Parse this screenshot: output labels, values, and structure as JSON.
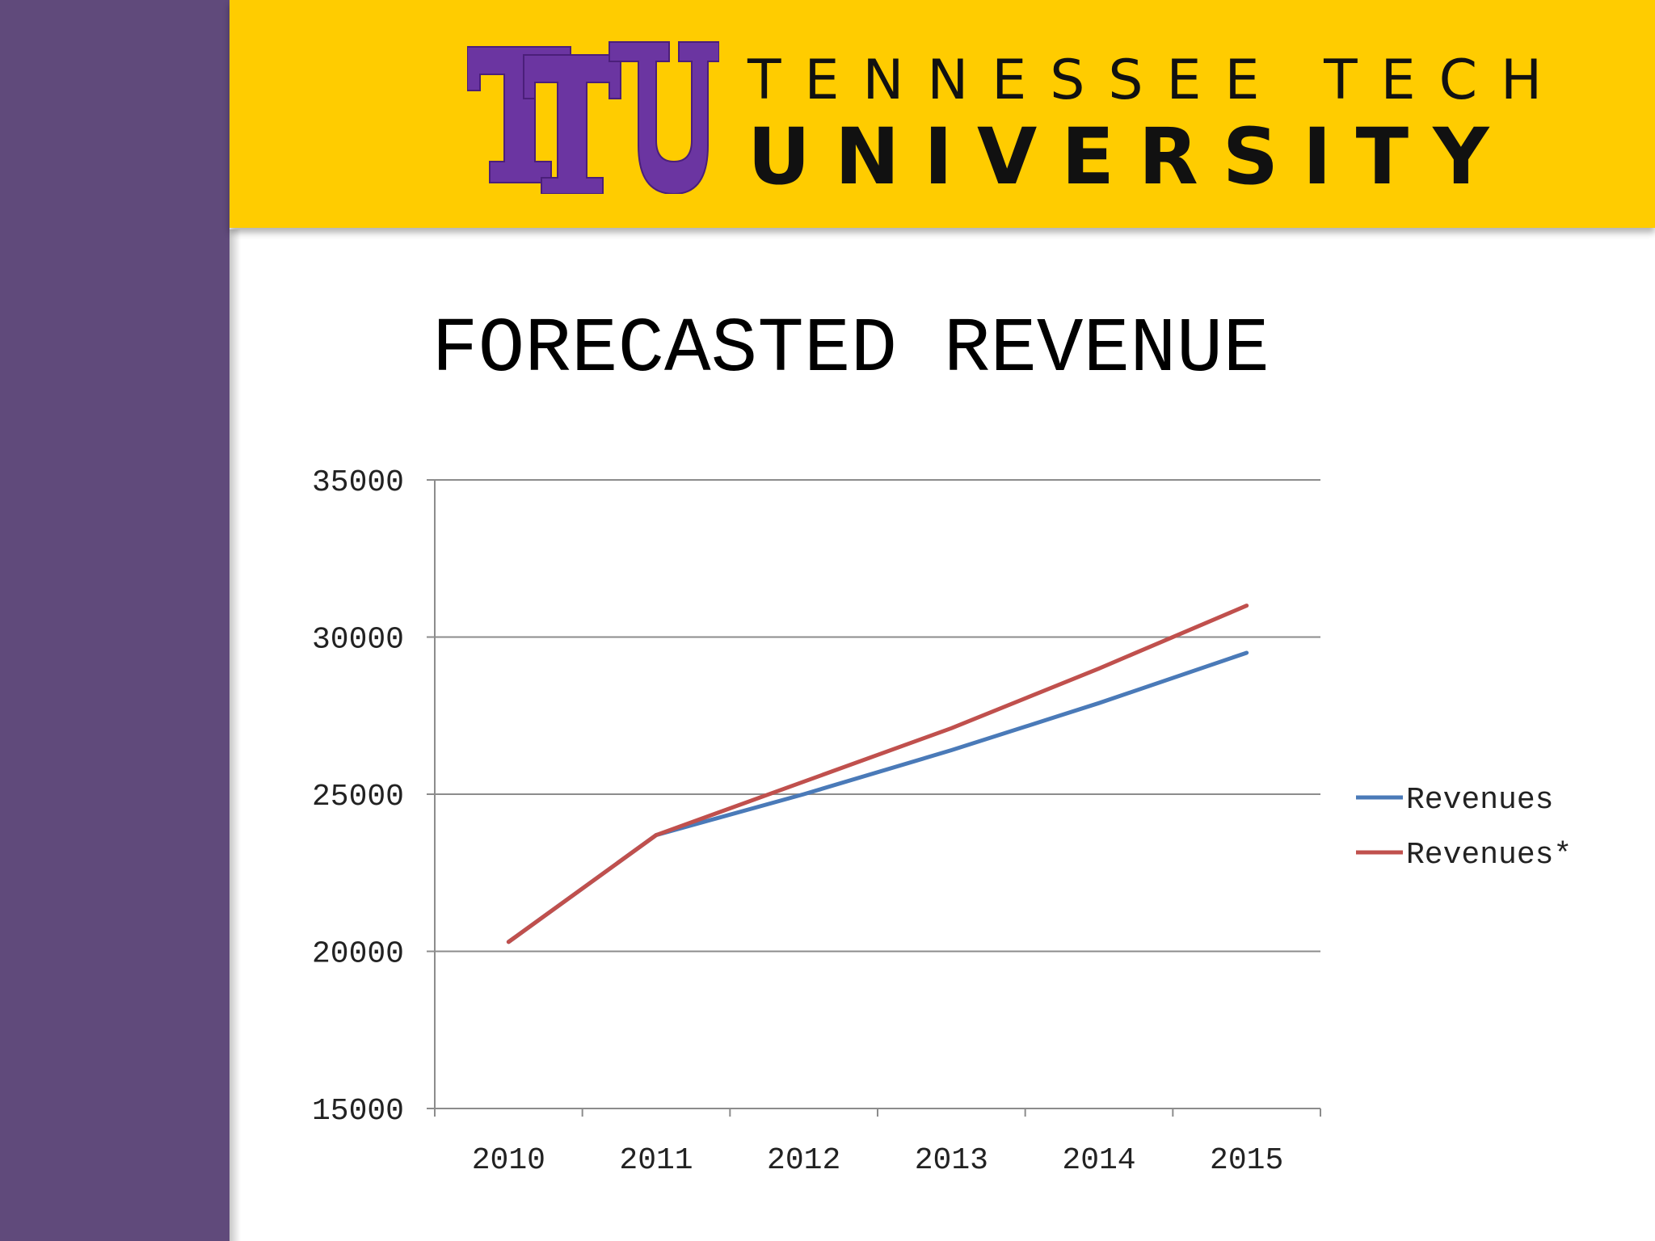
{
  "header": {
    "logo_mark_text": "TTU",
    "logo_line_1": "TENNESSEE TECH",
    "logo_line_2": "UNIVERSITY",
    "band_color": "#ffcc00",
    "logo_purple": "#6b35a1"
  },
  "sidebar": {
    "color": "#604a7b"
  },
  "slide": {
    "title": "FORECASTED REVENUE"
  },
  "chart_data": {
    "type": "line",
    "title": "FORECASTED REVENUE",
    "xlabel": "",
    "ylabel": "",
    "categories": [
      "2010",
      "2011",
      "2012",
      "2013",
      "2014",
      "2015"
    ],
    "ylim": [
      15000,
      35000
    ],
    "yticks": [
      15000,
      20000,
      25000,
      30000,
      35000
    ],
    "grid": true,
    "legend_position": "right",
    "series": [
      {
        "name": "Revenues",
        "color": "#4a7ab8",
        "values": [
          20300,
          23700,
          25000,
          26400,
          27900,
          29500
        ]
      },
      {
        "name": "Revenues*",
        "color": "#c0504d",
        "values": [
          20300,
          23700,
          25400,
          27100,
          29000,
          31000
        ]
      }
    ]
  }
}
